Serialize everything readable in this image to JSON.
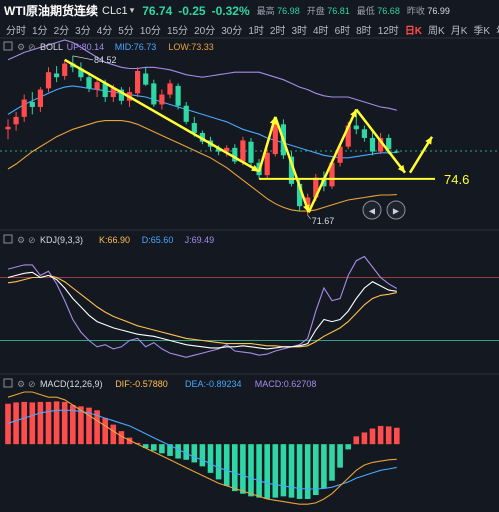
{
  "header": {
    "symbol": "WTI原油期货连续",
    "code": "CLc1",
    "price": "76.74",
    "change": "-0.25",
    "change_pct": "-0.32%",
    "high_label": "最高",
    "high": "76.98",
    "open_label": "开盘",
    "open": "76.81",
    "low_label": "最低",
    "low": "76.68",
    "prev_label": "昨收",
    "prev": "76.99"
  },
  "timeframes": [
    "分时",
    "1分",
    "2分",
    "3分",
    "4分",
    "5分",
    "10分",
    "15分",
    "20分",
    "30分",
    "1时",
    "2时",
    "3时",
    "4时",
    "6时",
    "8时",
    "12时",
    "日K",
    "周K",
    "月K",
    "季K",
    "年K"
  ],
  "active_timeframe": "日K",
  "boll": {
    "name": "BOLL",
    "up": "UP:80.14",
    "mid": "MID:76.73",
    "low": "LOW:73.33"
  },
  "kdj": {
    "name": "KDJ(9,3,3)",
    "k": "K:66.90",
    "d": "D:65.60",
    "j": "J:69.49"
  },
  "macd": {
    "name": "MACD(12,26,9)",
    "dif": "DIF:-0.57880",
    "dea": "DEA:-0.89234",
    "macd": "MACD:0.62708"
  },
  "annotations": {
    "high_price": "84.52",
    "low_price": "71.67",
    "support": "74.6"
  },
  "colors": {
    "up": "#ff4d4d",
    "down": "#2fd6a6",
    "boll_up": "#a78be8",
    "boll_mid": "#4aa8ff",
    "boll_low": "#e8a33a",
    "support": "#ffff33",
    "k": "#ffffff",
    "d": "#ffc14d",
    "j": "#a78be8",
    "dif": "#e8a33a",
    "dea": "#4aa8ff"
  },
  "chart_data": [
    {
      "type": "candlestick",
      "title": "WTI原油期货连续 CLc1 日K",
      "ylim": [
        70.8,
        85.8
      ],
      "candles": [
        [
          78.6,
          79.4,
          77.8,
          78.8
        ],
        [
          79.0,
          80.0,
          78.5,
          79.6
        ],
        [
          79.6,
          81.4,
          79.2,
          81.0
        ],
        [
          80.8,
          81.6,
          79.8,
          80.4
        ],
        [
          80.4,
          82.0,
          80.0,
          81.8
        ],
        [
          81.9,
          83.6,
          81.6,
          83.2
        ],
        [
          83.1,
          83.7,
          82.4,
          82.8
        ],
        [
          82.9,
          84.2,
          82.6,
          83.9
        ],
        [
          83.9,
          84.52,
          83.2,
          83.6
        ],
        [
          83.5,
          84.0,
          82.5,
          82.8
        ],
        [
          82.8,
          83.2,
          81.6,
          81.9
        ],
        [
          81.8,
          82.6,
          81.2,
          82.4
        ],
        [
          82.3,
          82.6,
          80.8,
          81.2
        ],
        [
          81.2,
          82.2,
          80.8,
          81.9
        ],
        [
          81.8,
          82.0,
          80.6,
          80.9
        ],
        [
          80.9,
          82.0,
          80.4,
          81.6
        ],
        [
          81.5,
          83.6,
          81.2,
          83.3
        ],
        [
          83.1,
          83.6,
          82.1,
          82.2
        ],
        [
          82.3,
          82.6,
          80.4,
          80.6
        ],
        [
          80.6,
          81.8,
          80.2,
          81.4
        ],
        [
          81.4,
          82.6,
          81.1,
          82.3
        ],
        [
          82.1,
          82.3,
          80.2,
          80.5
        ],
        [
          80.5,
          80.8,
          79.0,
          79.2
        ],
        [
          79.1,
          79.6,
          78.0,
          78.3
        ],
        [
          78.3,
          78.5,
          77.4,
          77.6
        ],
        [
          77.7,
          78.0,
          76.9,
          77.2
        ],
        [
          77.1,
          77.3,
          76.5,
          76.8
        ],
        [
          76.8,
          77.3,
          76.4,
          77.1
        ],
        [
          77.1,
          77.4,
          75.8,
          76.0
        ],
        [
          76.0,
          78.0,
          75.7,
          77.7
        ],
        [
          77.6,
          77.9,
          75.6,
          75.9
        ],
        [
          75.9,
          76.2,
          74.6,
          74.9
        ],
        [
          74.9,
          77.0,
          74.6,
          76.7
        ],
        [
          76.6,
          79.4,
          76.4,
          79.1
        ],
        [
          79.0,
          79.4,
          76.2,
          76.5
        ],
        [
          76.4,
          76.8,
          74.0,
          74.2
        ],
        [
          74.2,
          74.6,
          72.0,
          72.4
        ],
        [
          72.4,
          73.4,
          71.67,
          73.1
        ],
        [
          73.1,
          75.0,
          72.8,
          74.7
        ],
        [
          74.7,
          75.2,
          73.6,
          74.0
        ],
        [
          74.0,
          76.2,
          73.8,
          75.9
        ],
        [
          75.9,
          77.5,
          75.6,
          77.2
        ],
        [
          77.2,
          79.2,
          77.0,
          78.9
        ],
        [
          78.9,
          80.1,
          78.2,
          78.6
        ],
        [
          78.6,
          78.9,
          77.6,
          77.9
        ],
        [
          77.9,
          78.4,
          76.5,
          76.8
        ],
        [
          76.8,
          78.3,
          76.6,
          77.9
        ],
        [
          77.9,
          78.2,
          76.6,
          76.99
        ],
        [
          76.81,
          76.98,
          76.68,
          76.74
        ]
      ],
      "boll_up": [
        84.2,
        84.5,
        84.8,
        85.0,
        85.2,
        85.4,
        85.6,
        85.8,
        85.6,
        85.2,
        84.8,
        84.4,
        84.0,
        83.8,
        83.6,
        83.5,
        83.5,
        83.6,
        83.6,
        83.5,
        83.4,
        83.2,
        83.0,
        82.9,
        82.8,
        82.9,
        83.0,
        83.1,
        83.2,
        83.2,
        83.2,
        83.2,
        83.0,
        82.8,
        82.6,
        82.3,
        82.0,
        81.8,
        81.5,
        81.3,
        81.2,
        81.2,
        81.2,
        81.0,
        80.8,
        80.6,
        80.4,
        80.3,
        80.14
      ],
      "boll_mid": [
        79.8,
        80.2,
        80.6,
        80.9,
        81.2,
        81.5,
        81.8,
        82.0,
        82.1,
        82.0,
        81.9,
        81.8,
        81.7,
        81.6,
        81.5,
        81.4,
        81.3,
        81.2,
        81.0,
        80.8,
        80.6,
        80.4,
        80.2,
        80.0,
        79.8,
        79.6,
        79.4,
        79.2,
        78.9,
        78.6,
        78.4,
        78.2,
        77.9,
        77.7,
        77.5,
        77.3,
        77.1,
        76.9,
        76.7,
        76.5,
        76.4,
        76.3,
        76.3,
        76.4,
        76.5,
        76.6,
        76.7,
        76.7,
        76.73
      ],
      "boll_low": [
        75.4,
        75.8,
        76.3,
        76.8,
        77.2,
        77.6,
        78.0,
        78.3,
        78.6,
        78.8,
        79.0,
        79.2,
        79.3,
        79.3,
        79.3,
        79.2,
        79.0,
        78.7,
        78.4,
        78.1,
        77.8,
        77.5,
        77.2,
        76.9,
        76.6,
        76.3,
        75.9,
        75.5,
        75.0,
        74.5,
        74.0,
        73.5,
        73.0,
        72.6,
        72.3,
        72.1,
        72.0,
        72.0,
        72.1,
        72.3,
        72.5,
        72.7,
        72.9,
        73.0,
        73.1,
        73.2,
        73.3,
        73.3,
        73.33
      ]
    },
    {
      "type": "line",
      "title": "KDJ(9,3,3)",
      "ylim": [
        -10,
        110
      ],
      "series": [
        {
          "name": "K",
          "values": [
            80,
            82,
            84,
            85,
            80,
            82,
            78,
            70,
            60,
            52,
            44,
            38,
            35,
            32,
            30,
            28,
            26,
            25,
            24,
            22,
            20,
            18,
            16,
            15,
            14,
            13,
            13,
            14,
            14,
            15,
            14,
            13,
            12,
            13,
            14,
            14,
            15,
            17,
            30,
            40,
            38,
            40,
            48,
            60,
            70,
            76,
            72,
            68,
            66.9
          ]
        },
        {
          "name": "D",
          "values": [
            75,
            76,
            78,
            80,
            80,
            82,
            80,
            76,
            70,
            64,
            58,
            52,
            47,
            43,
            40,
            37,
            34,
            32,
            30,
            28,
            26,
            24,
            22,
            21,
            20,
            19,
            18,
            17,
            17,
            17,
            17,
            16,
            15,
            15,
            14,
            14,
            14,
            15,
            19,
            24,
            28,
            32,
            38,
            46,
            54,
            60,
            63,
            64,
            65.6
          ]
        },
        {
          "name": "J",
          "values": [
            88,
            90,
            92,
            92,
            82,
            86,
            74,
            58,
            40,
            28,
            20,
            14,
            16,
            12,
            14,
            20,
            22,
            14,
            18,
            12,
            8,
            6,
            4,
            6,
            8,
            10,
            12,
            16,
            10,
            9,
            8,
            6,
            7,
            10,
            12,
            14,
            16,
            22,
            48,
            70,
            58,
            60,
            82,
            96,
            100,
            90,
            80,
            74,
            69.49
          ]
        }
      ],
      "reference_lines": [
        80,
        20
      ]
    },
    {
      "type": "bar",
      "title": "MACD(12,26,9)",
      "ylim": [
        -2.6,
        2.0
      ],
      "macd": [
        1.55,
        1.6,
        1.62,
        1.6,
        1.62,
        1.62,
        1.64,
        1.62,
        1.5,
        1.45,
        1.4,
        1.3,
        1.0,
        0.75,
        0.5,
        0.25,
        0.05,
        -0.15,
        -0.25,
        -0.35,
        -0.45,
        -0.55,
        -0.6,
        -0.7,
        -0.85,
        -1.1,
        -1.35,
        -1.6,
        -1.8,
        -1.9,
        -2.0,
        -2.05,
        -2.1,
        -2.05,
        -2.0,
        -2.05,
        -2.1,
        -2.1,
        -1.95,
        -1.7,
        -1.4,
        -0.9,
        -0.2,
        0.3,
        0.45,
        0.6,
        0.7,
        0.68,
        0.63
      ],
      "dif": [
        1.8,
        1.9,
        2.0,
        2.0,
        1.9,
        1.8,
        1.8,
        1.7,
        1.5,
        1.3,
        1.1,
        0.9,
        0.7,
        0.5,
        0.3,
        0.15,
        0.0,
        -0.15,
        -0.3,
        -0.45,
        -0.6,
        -0.75,
        -0.9,
        -1.05,
        -1.2,
        -1.35,
        -1.5,
        -1.6,
        -1.7,
        -1.8,
        -1.9,
        -2.0,
        -2.1,
        -2.15,
        -2.2,
        -2.25,
        -2.3,
        -2.3,
        -2.25,
        -2.1,
        -1.9,
        -1.6,
        -1.3,
        -1.0,
        -0.8,
        -0.7,
        -0.65,
        -0.6,
        -0.58
      ],
      "dea": [
        0.8,
        0.9,
        1.0,
        1.1,
        1.2,
        1.25,
        1.3,
        1.3,
        1.3,
        1.25,
        1.2,
        1.1,
        1.0,
        0.9,
        0.8,
        0.7,
        0.55,
        0.4,
        0.25,
        0.1,
        -0.05,
        -0.2,
        -0.35,
        -0.5,
        -0.6,
        -0.75,
        -0.9,
        -1.0,
        -1.1,
        -1.2,
        -1.3,
        -1.4,
        -1.5,
        -1.55,
        -1.6,
        -1.65,
        -1.7,
        -1.72,
        -1.72,
        -1.7,
        -1.65,
        -1.55,
        -1.45,
        -1.3,
        -1.2,
        -1.1,
        -1.0,
        -0.95,
        -0.89
      ]
    }
  ]
}
